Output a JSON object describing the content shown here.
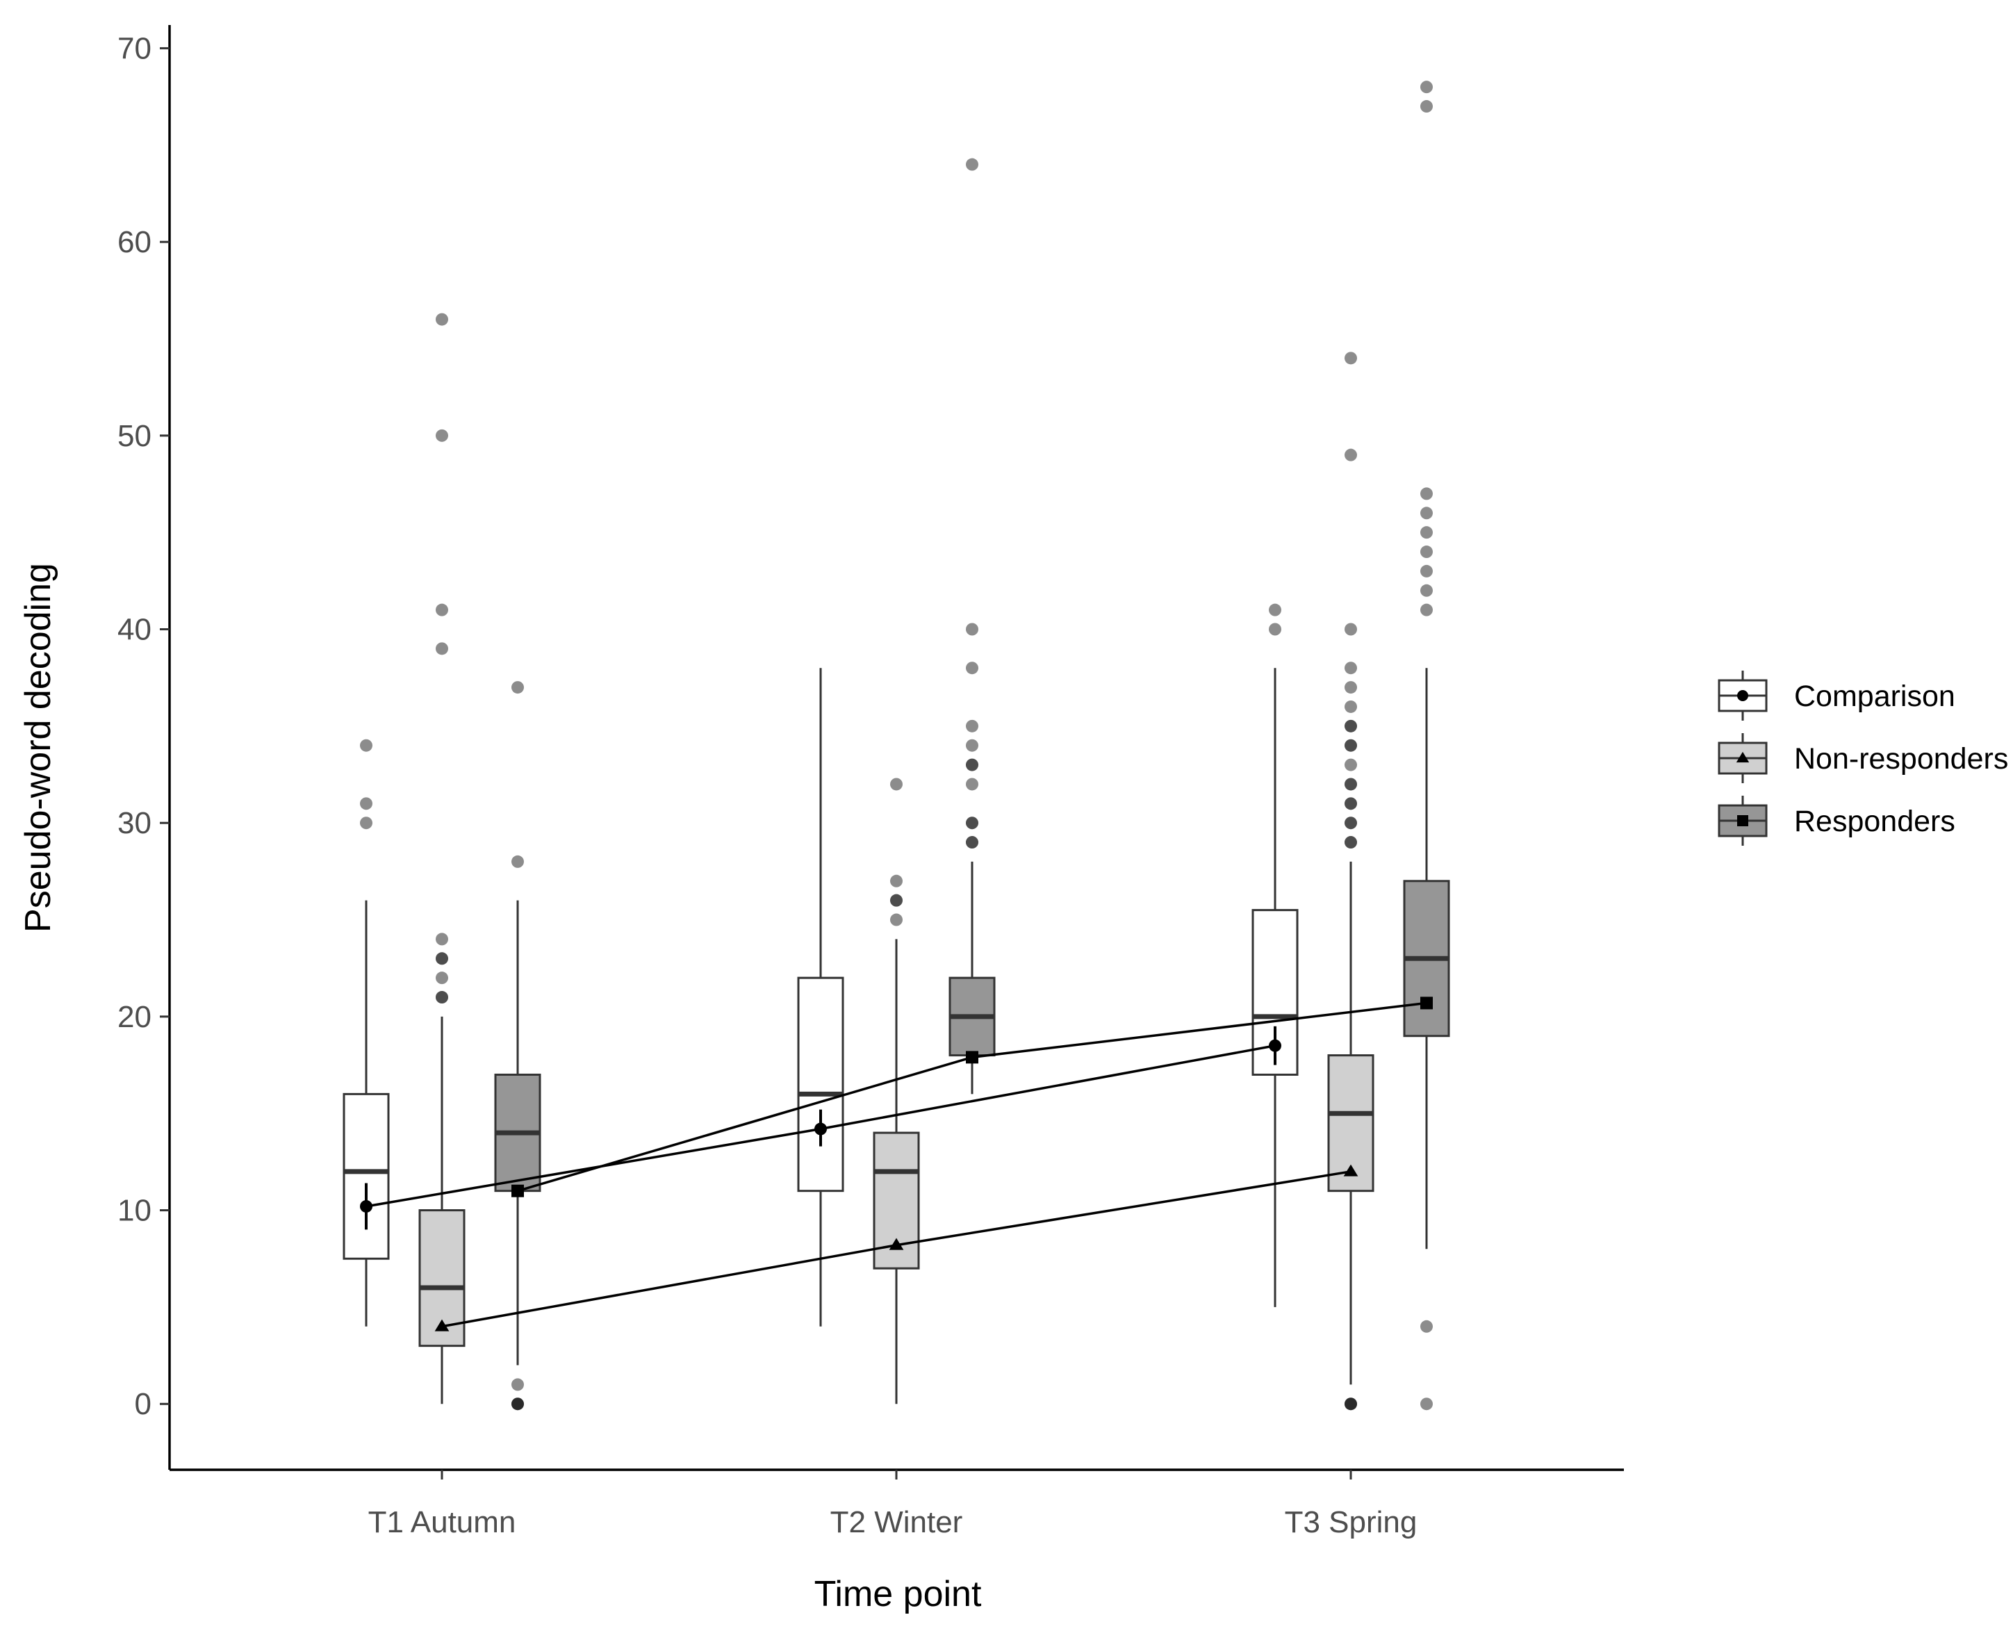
{
  "chart_data": {
    "type": "box",
    "xlabel": "Time point",
    "ylabel": "Pseudo-word decoding",
    "ylim": [
      -3.4,
      71.2
    ],
    "yticks": [
      0,
      10,
      20,
      30,
      40,
      50,
      60,
      70
    ],
    "categories": [
      "T1 Autumn",
      "T2 Winter",
      "T3 Spring"
    ],
    "legend_position": "right",
    "grid": false,
    "series": [
      {
        "name": "Comparison",
        "fill": "#ffffff",
        "mean_marker": "circle",
        "boxes": [
          {
            "whisker_low": 4,
            "q1": 7.5,
            "median": 12,
            "q3": 16,
            "whisker_high": 26,
            "outliers": [
              30,
              31,
              34
            ]
          },
          {
            "whisker_low": 4,
            "q1": 11,
            "median": 16,
            "q3": 22,
            "whisker_high": 38,
            "outliers": []
          },
          {
            "whisker_low": 5,
            "q1": 17,
            "median": 20,
            "q3": 25.5,
            "whisker_high": 38,
            "outliers": [
              40,
              41
            ]
          }
        ],
        "means": [
          10.2,
          14.2,
          18.5
        ],
        "mean_ci": [
          [
            9.0,
            11.4
          ],
          [
            13.3,
            15.2
          ],
          [
            17.5,
            19.5
          ]
        ]
      },
      {
        "name": "Non-responders",
        "fill": "#d0d0d0",
        "mean_marker": "triangle",
        "boxes": [
          {
            "whisker_low": 0,
            "q1": 3,
            "median": 6,
            "q3": 10,
            "whisker_high": 20,
            "outliers": [
              21,
              21,
              22,
              23,
              23,
              24,
              39,
              41,
              50,
              56
            ]
          },
          {
            "whisker_low": 0,
            "q1": 7,
            "median": 12,
            "q3": 14,
            "whisker_high": 24,
            "outliers": [
              25,
              26,
              26,
              27,
              32
            ]
          },
          {
            "whisker_low": 1,
            "q1": 11,
            "median": 15,
            "q3": 18,
            "whisker_high": 28,
            "outliers": [
              0,
              0,
              0,
              29,
              29,
              30,
              30,
              31,
              31,
              32,
              32,
              33,
              34,
              34,
              35,
              35,
              36,
              37,
              38,
              40,
              49,
              54
            ]
          }
        ],
        "means": [
          4.0,
          8.2,
          12.0
        ],
        "mean_ci": [
          [
            3.8,
            4.2
          ],
          [
            8.0,
            8.4
          ],
          [
            11.8,
            12.2
          ]
        ]
      },
      {
        "name": "Responders",
        "fill": "#969696",
        "mean_marker": "square",
        "boxes": [
          {
            "whisker_low": 2,
            "q1": 11,
            "median": 14,
            "q3": 17,
            "whisker_high": 26,
            "outliers": [
              0,
              0,
              0,
              1,
              28,
              37
            ]
          },
          {
            "whisker_low": 16,
            "q1": 18,
            "median": 20,
            "q3": 22,
            "whisker_high": 28,
            "outliers": [
              29,
              29,
              30,
              30,
              32,
              33,
              33,
              34,
              35,
              38,
              40,
              64
            ]
          },
          {
            "whisker_low": 8,
            "q1": 19,
            "median": 23,
            "q3": 27,
            "whisker_high": 38,
            "outliers": [
              0,
              4,
              41,
              42,
              43,
              44,
              45,
              46,
              47,
              67,
              68
            ]
          }
        ],
        "means": [
          11.0,
          17.9,
          20.7
        ],
        "mean_ci": [
          [
            10.8,
            11.2
          ],
          [
            17.7,
            18.1
          ],
          [
            20.5,
            20.9
          ]
        ]
      }
    ]
  }
}
